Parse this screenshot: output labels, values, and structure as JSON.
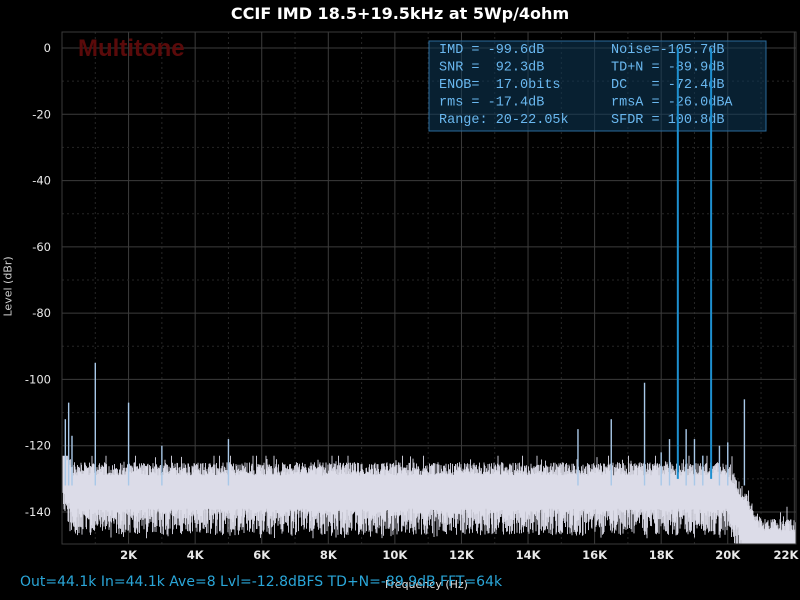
{
  "chart_data": {
    "type": "line",
    "title": "CCIF IMD 18.5+19.5kHz at 5Wp/4ohm",
    "xlabel": "Frequency (Hz)",
    "ylabel": "Level (dBr)",
    "xlim": [
      0,
      22050
    ],
    "ylim": [
      -150,
      5
    ],
    "x_ticks": [
      "2K",
      "4K",
      "6K",
      "8K",
      "10K",
      "12K",
      "14K",
      "16K",
      "18K",
      "20K",
      "22K"
    ],
    "y_ticks": [
      "0",
      "-20",
      "-40",
      "-60",
      "-80",
      "-100",
      "-120",
      "-140"
    ],
    "grid": true,
    "watermark": "Multitone",
    "colors": {
      "background": "#000000",
      "noise_floor": "#dcdce8",
      "spur": "#a8c8e8",
      "tone": "#1e90d0",
      "readout_text": "#6ab8f0",
      "watermark": "#5a0a0a",
      "footer": "#2aa6d8"
    },
    "noise_floor_db": -133,
    "noise_floor_spread_db": [
      -145,
      -125
    ],
    "noise_rolloff_start_hz": 20000,
    "noise_rolloff_end_hz": 21000,
    "noise_rolloff_end_db": -150,
    "tones": [
      {
        "freq": 18500,
        "level": 0
      },
      {
        "freq": 19500,
        "level": 0
      }
    ],
    "spurs": [
      {
        "freq": 100,
        "level": -112
      },
      {
        "freq": 200,
        "level": -107
      },
      {
        "freq": 300,
        "level": -117
      },
      {
        "freq": 1000,
        "level": -95
      },
      {
        "freq": 2000,
        "level": -107
      },
      {
        "freq": 3000,
        "level": -120
      },
      {
        "freq": 5000,
        "level": -118
      },
      {
        "freq": 15500,
        "level": -115
      },
      {
        "freq": 16500,
        "level": -112
      },
      {
        "freq": 17500,
        "level": -101
      },
      {
        "freq": 18000,
        "level": -122
      },
      {
        "freq": 18250,
        "level": -118
      },
      {
        "freq": 18750,
        "level": -115
      },
      {
        "freq": 19000,
        "level": -118
      },
      {
        "freq": 19250,
        "level": -123
      },
      {
        "freq": 19750,
        "level": -120
      },
      {
        "freq": 20000,
        "level": -119
      },
      {
        "freq": 20500,
        "level": -106
      }
    ],
    "readout": [
      [
        "IMD = -99.6dB",
        "Noise=-105.7dB"
      ],
      [
        "SNR =  92.3dB",
        "TD+N = -89.9dB"
      ],
      [
        "ENOB=  17.0bits",
        "DC   = -72.4dB"
      ],
      [
        "rms = -17.4dB",
        "rmsA = -26.0dBA"
      ],
      [
        "Range: 20-22.05k",
        "SFDR = 100.8dB"
      ]
    ]
  },
  "footer": "Out=44.1k  In=44.1k  Ave=8  Lvl=-12.8dBFS  TD+N=-89.9dB  FFT=64k"
}
